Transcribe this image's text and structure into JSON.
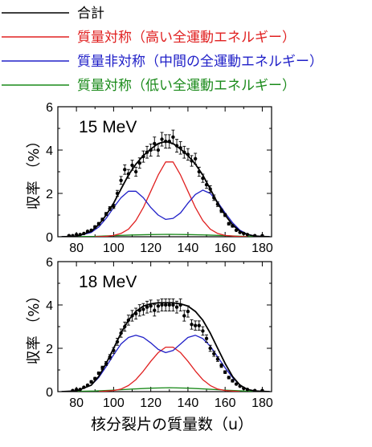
{
  "legend": [
    {
      "label": "合計",
      "color": "#000000"
    },
    {
      "label": "質量対称（高い全運動エネルギー）",
      "color": "#e02020"
    },
    {
      "label": "質量非対称（中間の全運動エネルギー）",
      "color": "#2020c8"
    },
    {
      "label": "質量対称（低い全運動エネルギー）",
      "color": "#1a8a1a"
    }
  ],
  "xlabel": "核分裂片の質量数（u）",
  "chart_data": [
    {
      "type": "line",
      "annotation": "15 MeV",
      "ylabel": "収率 （%）",
      "xlim": [
        70,
        185
      ],
      "ylim": [
        0,
        6
      ],
      "xticks": [
        80,
        100,
        120,
        140,
        160,
        180
      ],
      "yticks": [
        0,
        2,
        4,
        6
      ],
      "series": [
        {
          "name": "合計",
          "color": "#000000",
          "x": [
            72,
            80,
            88,
            92,
            96,
            100,
            104,
            108,
            112,
            116,
            120,
            124,
            128,
            132,
            136,
            140,
            144,
            148,
            152,
            156,
            160,
            164,
            168,
            172,
            176,
            180,
            184
          ],
          "y": [
            0.0,
            0.02,
            0.25,
            0.55,
            1.0,
            1.55,
            2.2,
            2.85,
            3.35,
            3.75,
            4.05,
            4.3,
            4.4,
            4.3,
            4.05,
            3.75,
            3.35,
            2.85,
            2.2,
            1.55,
            1.0,
            0.55,
            0.25,
            0.1,
            0.03,
            0.01,
            0.0
          ]
        },
        {
          "name": "質量対称（高い全運動エネルギー）",
          "color": "#e02020",
          "x": [
            90,
            96,
            100,
            104,
            108,
            112,
            116,
            120,
            124,
            128,
            132,
            136,
            140,
            144,
            148,
            152,
            156,
            160,
            166,
            172
          ],
          "y": [
            0.0,
            0.02,
            0.06,
            0.15,
            0.35,
            0.75,
            1.35,
            2.1,
            2.85,
            3.45,
            3.45,
            2.85,
            2.1,
            1.35,
            0.75,
            0.35,
            0.15,
            0.06,
            0.02,
            0.0
          ]
        },
        {
          "name": "質量非対称（中間の全運動エネルギー）",
          "color": "#2020c8",
          "x": [
            72,
            80,
            88,
            92,
            96,
            100,
            104,
            108,
            112,
            116,
            120,
            124,
            128,
            132,
            136,
            140,
            144,
            148,
            152,
            156,
            160,
            164,
            168,
            172,
            176,
            184
          ],
          "y": [
            0.0,
            0.02,
            0.2,
            0.45,
            0.85,
            1.35,
            1.8,
            2.1,
            2.1,
            1.8,
            1.35,
            1.0,
            0.8,
            0.85,
            1.1,
            1.55,
            1.95,
            2.15,
            2.0,
            1.6,
            1.1,
            0.65,
            0.3,
            0.12,
            0.03,
            0.0
          ]
        },
        {
          "name": "質量対称（低い全運動エネルギー）",
          "color": "#1a8a1a",
          "x": [
            72,
            90,
            100,
            110,
            120,
            130,
            140,
            150,
            160,
            170,
            184
          ],
          "y": [
            0.0,
            0.02,
            0.05,
            0.08,
            0.1,
            0.11,
            0.1,
            0.08,
            0.05,
            0.02,
            0.0
          ]
        }
      ],
      "data_points": {
        "x": [
          76,
          78,
          80,
          82,
          84,
          86,
          88,
          90,
          92,
          94,
          96,
          98,
          100,
          102,
          104,
          106,
          108,
          110,
          112,
          114,
          116,
          118,
          120,
          122,
          124,
          126,
          128,
          130,
          132,
          134,
          136,
          138,
          140,
          142,
          144,
          146,
          148,
          150,
          152,
          154,
          156,
          158,
          160,
          162,
          164,
          166,
          168,
          170,
          172,
          176,
          180
        ],
        "y": [
          0.05,
          0.05,
          0.1,
          0.1,
          0.15,
          0.25,
          0.3,
          0.45,
          0.6,
          0.8,
          1.05,
          1.3,
          1.4,
          2.0,
          2.6,
          3.1,
          2.9,
          3.3,
          3.0,
          3.4,
          3.7,
          3.9,
          4.0,
          4.3,
          4.0,
          4.5,
          4.4,
          4.4,
          4.6,
          4.2,
          4.1,
          3.9,
          3.8,
          3.5,
          3.6,
          3.0,
          2.7,
          2.4,
          2.2,
          1.8,
          1.5,
          1.2,
          1.0,
          0.6,
          0.5,
          0.3,
          0.2,
          0.15,
          0.1,
          0.05,
          0.05
        ]
      }
    },
    {
      "type": "line",
      "annotation": "18 MeV",
      "ylabel": "収率 （%）",
      "xlim": [
        70,
        185
      ],
      "ylim": [
        0,
        6
      ],
      "xticks": [
        80,
        100,
        120,
        140,
        160,
        180
      ],
      "yticks": [
        0,
        2,
        4,
        6
      ],
      "series": [
        {
          "name": "合計",
          "color": "#000000",
          "x": [
            72,
            80,
            88,
            92,
            96,
            100,
            104,
            108,
            112,
            116,
            120,
            124,
            128,
            132,
            136,
            140,
            144,
            148,
            152,
            156,
            160,
            164,
            168,
            172,
            176,
            180,
            184
          ],
          "y": [
            0.0,
            0.03,
            0.3,
            0.7,
            1.3,
            2.0,
            2.7,
            3.3,
            3.7,
            3.95,
            4.05,
            4.1,
            4.1,
            4.1,
            4.05,
            3.95,
            3.7,
            3.3,
            2.7,
            2.0,
            1.3,
            0.7,
            0.3,
            0.1,
            0.03,
            0.01,
            0.0
          ]
        },
        {
          "name": "質量対称（高い全運動エネルギー）",
          "color": "#e02020",
          "x": [
            92,
            100,
            104,
            108,
            112,
            116,
            120,
            124,
            128,
            132,
            136,
            140,
            144,
            148,
            152,
            156,
            160,
            168
          ],
          "y": [
            0.0,
            0.05,
            0.12,
            0.28,
            0.55,
            0.95,
            1.4,
            1.8,
            2.05,
            2.05,
            1.8,
            1.4,
            0.95,
            0.55,
            0.28,
            0.12,
            0.05,
            0.0
          ]
        },
        {
          "name": "質量非対称（中間の全運動エネルギー）",
          "color": "#2020c8",
          "x": [
            72,
            80,
            88,
            92,
            96,
            100,
            104,
            108,
            112,
            116,
            120,
            124,
            128,
            132,
            136,
            140,
            144,
            148,
            152,
            156,
            160,
            164,
            168,
            172,
            176,
            184
          ],
          "y": [
            0.0,
            0.03,
            0.3,
            0.65,
            1.15,
            1.7,
            2.2,
            2.5,
            2.6,
            2.5,
            2.25,
            1.95,
            1.8,
            1.9,
            2.2,
            2.5,
            2.6,
            2.45,
            2.1,
            1.6,
            1.1,
            0.65,
            0.3,
            0.1,
            0.03,
            0.0
          ]
        },
        {
          "name": "質量対称（低い全運動エネルギー）",
          "color": "#1a8a1a",
          "x": [
            72,
            90,
            100,
            110,
            120,
            130,
            140,
            150,
            160,
            170,
            184
          ],
          "y": [
            0.0,
            0.03,
            0.07,
            0.12,
            0.16,
            0.18,
            0.16,
            0.12,
            0.07,
            0.03,
            0.0
          ]
        }
      ],
      "data_points": {
        "x": [
          78,
          80,
          82,
          84,
          86,
          88,
          90,
          92,
          94,
          96,
          98,
          100,
          102,
          104,
          106,
          108,
          110,
          112,
          114,
          116,
          118,
          120,
          122,
          124,
          126,
          128,
          130,
          132,
          134,
          136,
          138,
          140,
          142,
          144,
          146,
          148,
          150,
          152,
          154,
          156,
          158,
          160,
          162,
          164,
          166,
          168,
          170,
          172,
          176,
          180
        ],
        "y": [
          0.05,
          0.1,
          0.1,
          0.2,
          0.3,
          0.45,
          0.6,
          0.85,
          1.1,
          1.3,
          1.6,
          1.9,
          2.3,
          2.7,
          3.0,
          3.3,
          3.5,
          3.6,
          3.75,
          3.8,
          3.9,
          3.95,
          3.75,
          3.95,
          4.0,
          4.0,
          4.0,
          4.0,
          3.9,
          4.0,
          3.5,
          3.7,
          3.1,
          3.05,
          3.05,
          2.8,
          2.45,
          2.0,
          1.75,
          1.5,
          1.2,
          0.9,
          0.65,
          0.5,
          0.35,
          0.25,
          0.15,
          0.1,
          0.05,
          0.05
        ]
      }
    }
  ]
}
